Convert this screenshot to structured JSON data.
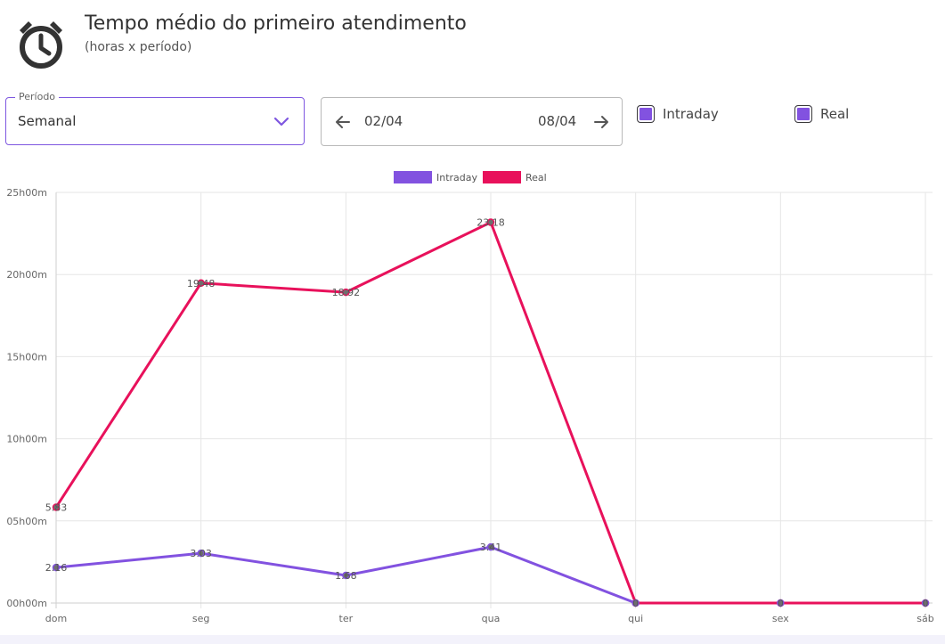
{
  "header": {
    "icon": "alarm-clock-icon",
    "title": "Tempo médio do primeiro atendimento",
    "subtitle": "(horas x período)"
  },
  "filters": {
    "period": {
      "label": "Período",
      "value": "Semanal",
      "icon": "chevron-down-icon"
    },
    "date_range": {
      "start": "02/04",
      "end": "08/04",
      "prev_icon": "arrow-left-icon",
      "next_icon": "arrow-right-icon"
    },
    "toggles": [
      {
        "label": "Intraday",
        "checked": true,
        "color": "#8252e0"
      },
      {
        "label": "Real",
        "checked": true,
        "color": "#8252e0"
      }
    ]
  },
  "colors": {
    "intraday": "#8252e0",
    "real": "#e8115b",
    "accent": "#7e57e0"
  },
  "chart_data": {
    "type": "line",
    "categories": [
      "dom",
      "seg",
      "ter",
      "qua",
      "qui",
      "sex",
      "sáb"
    ],
    "y_tick_labels": [
      "00h00m",
      "05h00m",
      "10h00m",
      "15h00m",
      "20h00m",
      "25h00m"
    ],
    "ylim": [
      0,
      25
    ],
    "legend_position": "top",
    "grid": true,
    "series": [
      {
        "name": "Intraday",
        "color": "#8252e0",
        "values": [
          2.16,
          3.03,
          1.68,
          3.41,
          0,
          0,
          0
        ],
        "labels": [
          "2.16",
          "3.03",
          "1.68",
          "3.41",
          "0",
          "0",
          "0"
        ]
      },
      {
        "name": "Real",
        "color": "#e8115b",
        "values": [
          5.83,
          19.48,
          18.92,
          23.18,
          0,
          0,
          0
        ],
        "labels": [
          "5.83",
          "19.48",
          "18.92",
          "23.18",
          "0",
          "0",
          "0"
        ]
      }
    ]
  }
}
